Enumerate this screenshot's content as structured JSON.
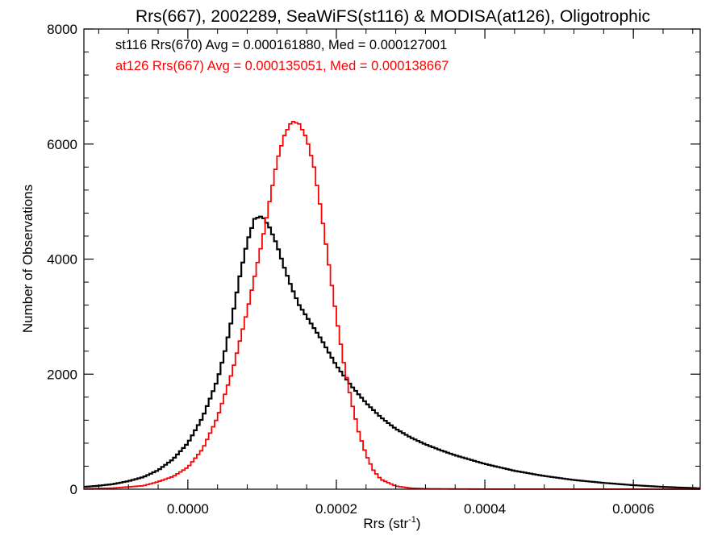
{
  "chart_data": {
    "type": "line",
    "title": "Rrs(667), 2002289, SeaWiFS(st116) & MODISA(at126), Oligotrophic",
    "xlabel": "Rrs (str",
    "xlabel_sup": "-1",
    "xlabel_end": ")",
    "ylabel": "Number of Observations",
    "xlim": [
      -0.00014,
      0.00069
    ],
    "ylim": [
      0,
      8000
    ],
    "grid": false,
    "legend_position": "top-left",
    "x_ticks": [
      {
        "value": 0.0,
        "label": "0.0000"
      },
      {
        "value": 0.0002,
        "label": "0.0002"
      },
      {
        "value": 0.0004,
        "label": "0.0004"
      },
      {
        "value": 0.0006,
        "label": "0.0006"
      }
    ],
    "y_ticks": [
      {
        "value": 0,
        "label": "0"
      },
      {
        "value": 2000,
        "label": "2000"
      },
      {
        "value": 4000,
        "label": "4000"
      },
      {
        "value": 6000,
        "label": "6000"
      },
      {
        "value": 8000,
        "label": "8000"
      }
    ],
    "series": [
      {
        "name": "st116",
        "legend": "st116 Rrs(670) Avg = 0.000161880, Med = 0.000127001",
        "color": "#000000",
        "x": [
          -0.00014,
          -0.00012,
          -0.0001,
          -8e-05,
          -6e-05,
          -4e-05,
          -2e-05,
          0.0,
          2e-05,
          4e-05,
          5e-05,
          6e-05,
          7e-05,
          8e-05,
          9e-05,
          0.0001,
          0.00011,
          0.00012,
          0.00013,
          0.00014,
          0.00015,
          0.00016,
          0.00017,
          0.00018,
          0.0002,
          0.00022,
          0.00024,
          0.00026,
          0.00028,
          0.0003,
          0.00032,
          0.00034,
          0.00036,
          0.0004,
          0.00044,
          0.00048,
          0.00052,
          0.00056,
          0.0006,
          0.00064,
          0.00069
        ],
        "y": [
          40,
          60,
          90,
          140,
          210,
          330,
          520,
          800,
          1250,
          1900,
          2400,
          3000,
          3700,
          4300,
          4700,
          4750,
          4550,
          4250,
          3850,
          3500,
          3200,
          3000,
          2800,
          2600,
          2150,
          1800,
          1500,
          1250,
          1050,
          900,
          780,
          680,
          590,
          440,
          320,
          230,
          160,
          110,
          70,
          40,
          15
        ]
      },
      {
        "name": "at126",
        "legend": "at126 Rrs(667) Avg = 0.000135051, Med = 0.000138667",
        "color": "#ff0000",
        "x": [
          -0.00014,
          -0.0001,
          -6e-05,
          -4e-05,
          -2e-05,
          0.0,
          2e-05,
          4e-05,
          6e-05,
          8e-05,
          0.0001,
          0.00011,
          0.00012,
          0.00013,
          0.00014,
          0.00015,
          0.00016,
          0.00017,
          0.00018,
          0.00019,
          0.0002,
          0.00021,
          0.00022,
          0.00023,
          0.00024,
          0.00025,
          0.00026,
          0.00028,
          0.0003,
          0.00032,
          0.00036,
          0.0004,
          0.00069
        ],
        "y": [
          5,
          20,
          60,
          130,
          220,
          380,
          700,
          1250,
          2050,
          3100,
          4300,
          5000,
          5700,
          6150,
          6400,
          6350,
          6100,
          5600,
          4800,
          3900,
          3000,
          2200,
          1550,
          1000,
          600,
          330,
          170,
          55,
          18,
          8,
          4,
          2,
          0
        ]
      }
    ]
  }
}
